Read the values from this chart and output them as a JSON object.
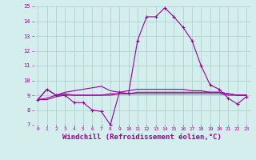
{
  "xlabel": "Windchill (Refroidissement éolien,°C)",
  "hours": [
    0,
    1,
    2,
    3,
    4,
    5,
    6,
    7,
    8,
    9,
    10,
    11,
    12,
    13,
    14,
    15,
    16,
    17,
    18,
    19,
    20,
    21,
    22,
    23
  ],
  "line1": [
    8.7,
    9.4,
    9.0,
    9.0,
    8.5,
    8.5,
    8.0,
    7.9,
    7.0,
    9.2,
    9.1,
    12.7,
    14.3,
    14.3,
    14.9,
    14.3,
    13.6,
    12.7,
    11.0,
    9.7,
    9.4,
    8.8,
    8.4,
    8.9
  ],
  "line2": [
    8.7,
    9.4,
    9.0,
    9.1,
    9.0,
    9.0,
    9.0,
    9.0,
    9.1,
    9.1,
    9.1,
    9.2,
    9.2,
    9.2,
    9.2,
    9.2,
    9.2,
    9.2,
    9.2,
    9.2,
    9.2,
    9.1,
    9.0,
    9.0
  ],
  "line3": [
    8.7,
    8.8,
    9.0,
    9.2,
    9.3,
    9.4,
    9.5,
    9.6,
    9.3,
    9.2,
    9.3,
    9.4,
    9.4,
    9.4,
    9.4,
    9.4,
    9.4,
    9.3,
    9.3,
    9.2,
    9.2,
    9.1,
    9.0,
    9.0
  ],
  "line4": [
    8.7,
    8.7,
    8.9,
    9.0,
    9.0,
    9.0,
    9.0,
    9.0,
    9.0,
    9.1,
    9.1,
    9.1,
    9.1,
    9.1,
    9.1,
    9.1,
    9.1,
    9.1,
    9.1,
    9.1,
    9.1,
    9.0,
    9.0,
    9.0
  ],
  "line_color": "#990099",
  "bg_color": "#d4eeee",
  "grid_color": "#aacccc",
  "ylim": [
    7,
    15
  ],
  "xlim": [
    0,
    23
  ],
  "yticks": [
    7,
    8,
    9,
    10,
    11,
    12,
    13,
    14,
    15
  ],
  "xticks": [
    0,
    1,
    2,
    3,
    4,
    5,
    6,
    7,
    8,
    9,
    10,
    11,
    12,
    13,
    14,
    15,
    16,
    17,
    18,
    19,
    20,
    21,
    22,
    23
  ],
  "tick_color": "#990099"
}
